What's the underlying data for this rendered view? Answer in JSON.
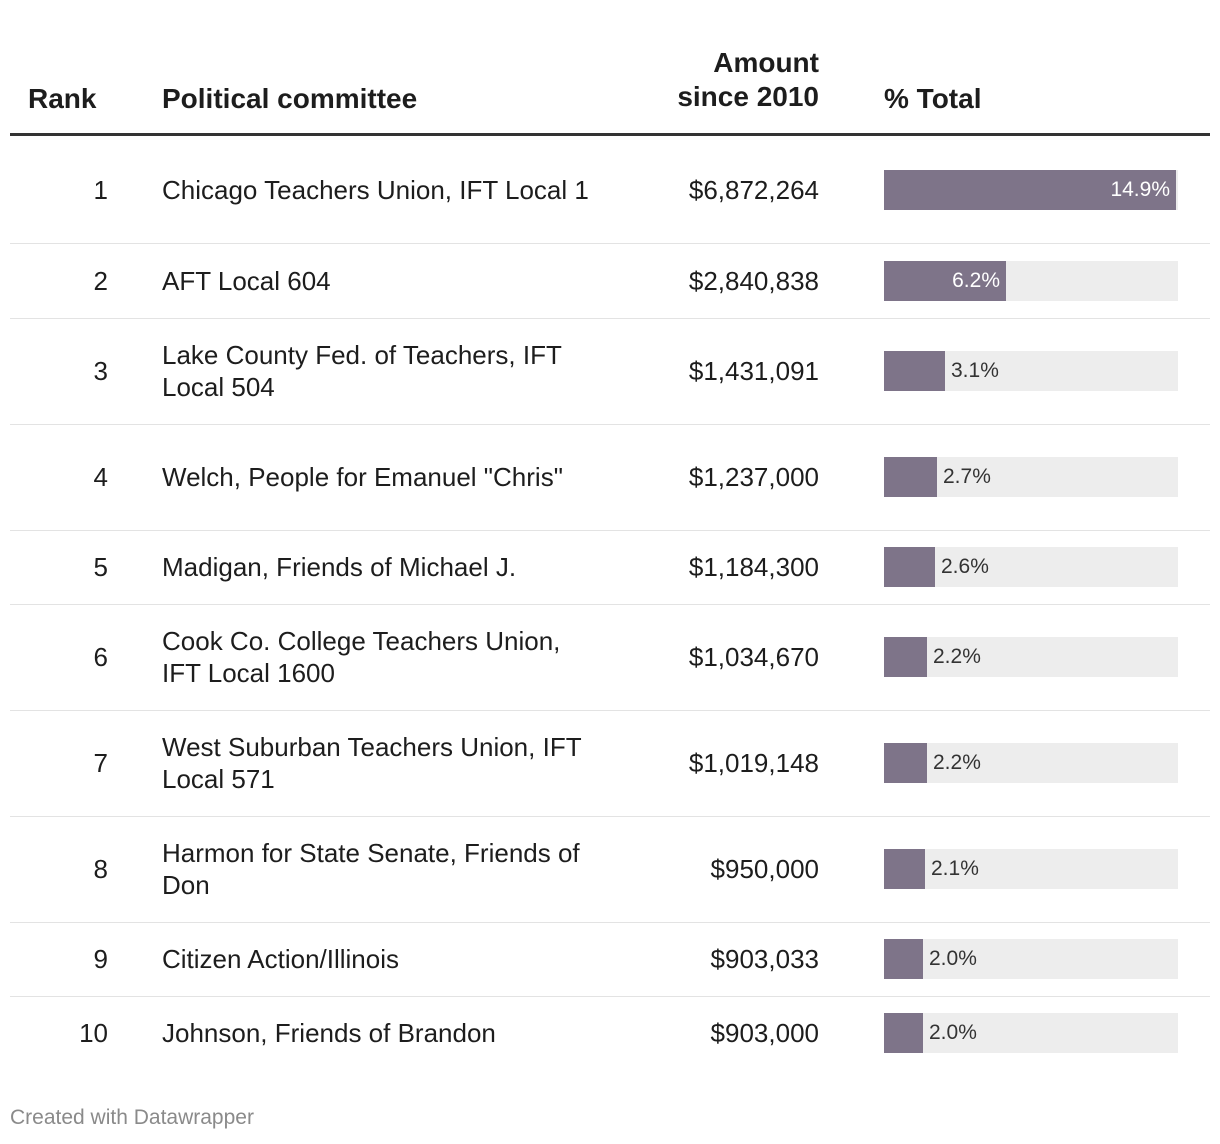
{
  "header": {
    "rank": "Rank",
    "committee": "Political committee",
    "amount_line1": "Amount",
    "amount_line2": "since 2010",
    "pct": "% Total"
  },
  "chart_data": {
    "type": "table",
    "columns": [
      "Rank",
      "Political committee",
      "Amount since 2010",
      "% Total"
    ],
    "bar_max": 15,
    "rows": [
      {
        "rank": "1",
        "name": "Chicago Teachers Union, IFT Local 1",
        "amount": "$6,872,264",
        "pct": 14.9,
        "pct_label": "14.9%"
      },
      {
        "rank": "2",
        "name": "AFT Local 604",
        "amount": "$2,840,838",
        "pct": 6.2,
        "pct_label": "6.2%"
      },
      {
        "rank": "3",
        "name": "Lake County Fed. of Teachers, IFT Local 504",
        "amount": "$1,431,091",
        "pct": 3.1,
        "pct_label": "3.1%"
      },
      {
        "rank": "4",
        "name": "Welch, People for Emanuel \"Chris\"",
        "amount": "$1,237,000",
        "pct": 2.7,
        "pct_label": "2.7%"
      },
      {
        "rank": "5",
        "name": "Madigan, Friends of Michael J.",
        "amount": "$1,184,300",
        "pct": 2.6,
        "pct_label": "2.6%"
      },
      {
        "rank": "6",
        "name": "Cook Co. College Teachers Union, IFT Local 1600",
        "amount": "$1,034,670",
        "pct": 2.2,
        "pct_label": "2.2%"
      },
      {
        "rank": "7",
        "name": "West Suburban Teachers Union, IFT Local 571",
        "amount": "$1,019,148",
        "pct": 2.2,
        "pct_label": "2.2%"
      },
      {
        "rank": "8",
        "name": "Harmon for State Senate, Friends of Don",
        "amount": "$950,000",
        "pct": 2.1,
        "pct_label": "2.1%"
      },
      {
        "rank": "9",
        "name": "Citizen Action/Illinois",
        "amount": "$903,033",
        "pct": 2.0,
        "pct_label": "2.0%"
      },
      {
        "rank": "10",
        "name": "Johnson, Friends of Brandon",
        "amount": "$903,000",
        "pct": 2.0,
        "pct_label": "2.0%"
      }
    ]
  },
  "footer": {
    "credit": "Created with Datawrapper"
  },
  "colors": {
    "bar": "#7e7489",
    "track": "#ededed"
  }
}
